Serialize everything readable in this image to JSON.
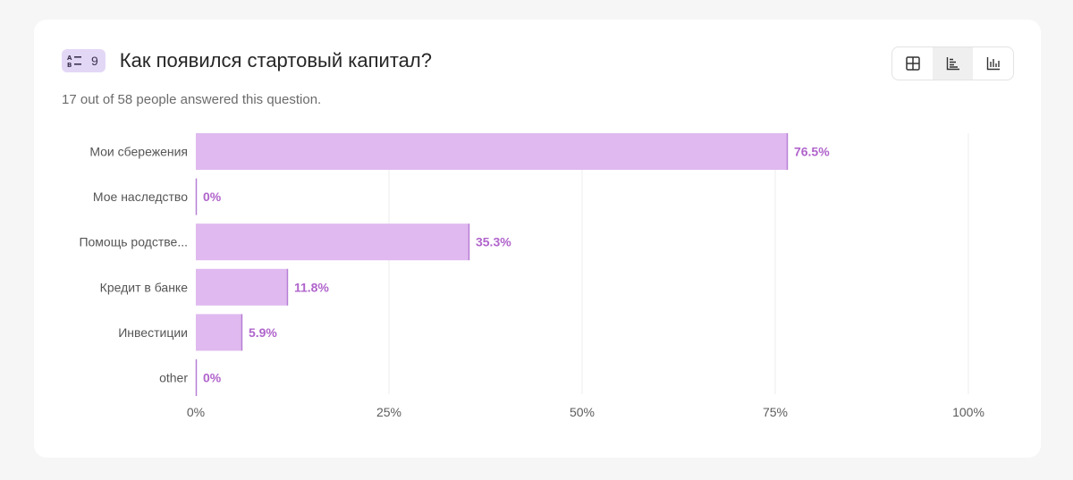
{
  "question": {
    "number": "9",
    "title": "Как появился стартовый капитал?",
    "answered_text": "17 out of 58 people answered this question.",
    "type_icon": "choice-list-icon"
  },
  "view_toggle": {
    "buttons": [
      {
        "icon": "grid-table-icon",
        "active": false
      },
      {
        "icon": "horizontal-bar-chart-icon",
        "active": true
      },
      {
        "icon": "vertical-bar-chart-icon",
        "active": false
      }
    ]
  },
  "colors": {
    "bar_fill": "#dfb9ef",
    "bar_edge": "#b77fd6",
    "value_label": "#b064cb",
    "badge_bg": "#e3d7f6"
  },
  "chart_data": {
    "type": "bar",
    "orientation": "horizontal",
    "categories": [
      "Мои сбережения",
      "Мое наследство",
      "Помощь родстве...",
      "Кредит в банке",
      "Инвестиции",
      "other"
    ],
    "values": [
      76.5,
      0,
      35.3,
      11.8,
      5.9,
      0
    ],
    "value_labels": [
      "76.5%",
      "0%",
      "35.3%",
      "11.8%",
      "5.9%",
      "0%"
    ],
    "xlim": [
      0,
      100
    ],
    "xticks": [
      0,
      25,
      50,
      75,
      100
    ],
    "xtick_labels": [
      "0%",
      "25%",
      "50%",
      "75%",
      "100%"
    ],
    "grid": true
  }
}
